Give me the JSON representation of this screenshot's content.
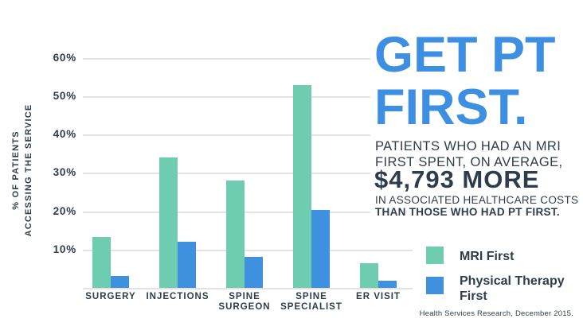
{
  "page": {
    "background": "#ffffff",
    "text_color": "#2e3d4e"
  },
  "header": {
    "title": "GET PT\nFIRST.",
    "accent_color": "#3d8fe2",
    "intro": "PATIENTS WHO HAD AN MRI\nFIRST SPENT, ON AVERAGE,",
    "highlight": "$4,793 MORE",
    "detail": "IN ASSOCIATED HEALTHCARE COSTS",
    "emphasis": "THAN THOSE WHO HAD PT FIRST."
  },
  "chart_data": {
    "type": "bar",
    "title": "",
    "xlabel": "",
    "ylabel": "% OF PATIENTS\nACCESSING THE SERVICE",
    "ylim": [
      0,
      65
    ],
    "grid": true,
    "gridline_color": "#e3e3e3",
    "yticks": [
      {
        "value": 10,
        "label": "10%"
      },
      {
        "value": 20,
        "label": "20%"
      },
      {
        "value": 30,
        "label": "30%"
      },
      {
        "value": 40,
        "label": "40%"
      },
      {
        "value": 50,
        "label": "50%"
      },
      {
        "value": 60,
        "label": "60%"
      }
    ],
    "categories": [
      "SURGERY",
      "INJECTIONS",
      "SPINE\nSURGEON",
      "SPINE\nSPECIALIST",
      "ER VISIT"
    ],
    "series": [
      {
        "name": "MRI First",
        "color": "#6eccb1",
        "values": [
          13.2,
          34,
          28,
          53,
          6.5
        ]
      },
      {
        "name": "Physical Therapy\nFirst",
        "color": "#3f90de",
        "values": [
          3.2,
          12,
          8,
          20.4,
          1.9
        ]
      }
    ],
    "legend_position": "bottom-right"
  },
  "footnote": "Health Services Research, December 2015."
}
